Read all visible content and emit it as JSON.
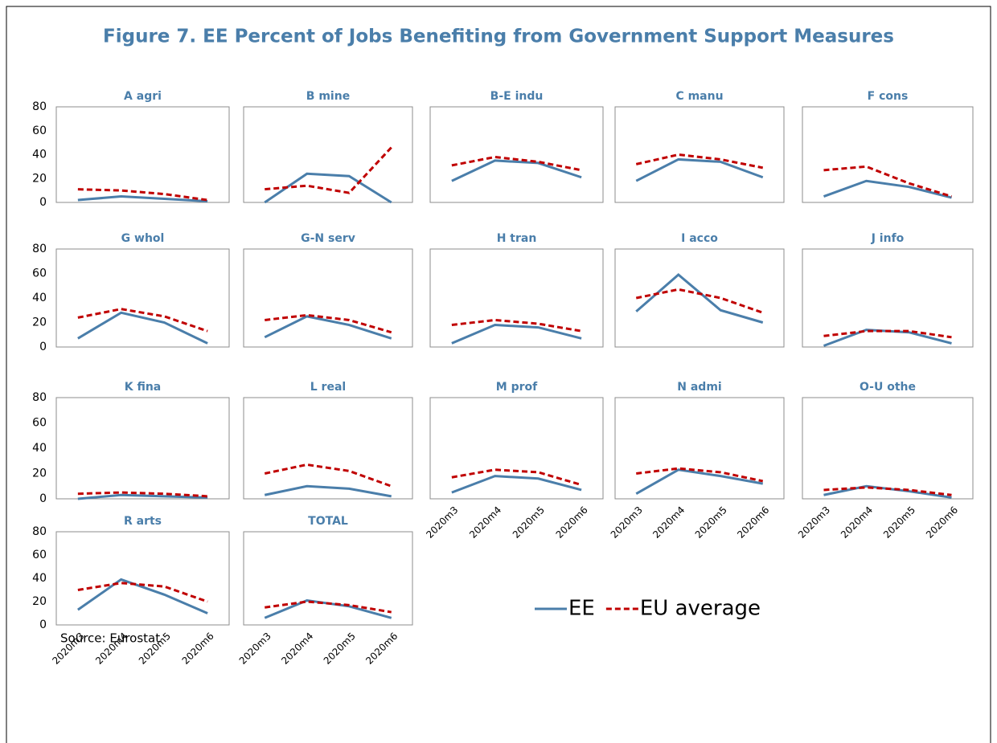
{
  "title": "Figure 7. EE Percent of Jobs Benefiting from Government Support Measures",
  "source": "Source: Eurostat",
  "chart_data": [
    {
      "type": "line",
      "title": "A agri",
      "categories": [
        "2020m3",
        "2020m4",
        "2020m5",
        "2020m6"
      ],
      "ylim": [
        0,
        80
      ],
      "yticks": [
        0,
        20,
        40,
        60,
        80
      ],
      "series": [
        {
          "name": "EE",
          "color": "#4a7eaa",
          "style": "solid",
          "values": [
            2,
            5,
            3,
            1
          ]
        },
        {
          "name": "EU average",
          "color": "#c00000",
          "style": "dashed",
          "values": [
            11,
            10,
            7,
            2
          ]
        }
      ]
    },
    {
      "type": "line",
      "title": "B mine",
      "categories": [
        "2020m3",
        "2020m4",
        "2020m5",
        "2020m6"
      ],
      "ylim": [
        0,
        80
      ],
      "yticks": [
        0,
        20,
        40,
        60,
        80
      ],
      "series": [
        {
          "name": "EE",
          "color": "#4a7eaa",
          "style": "solid",
          "values": [
            0,
            24,
            22,
            0
          ]
        },
        {
          "name": "EU average",
          "color": "#c00000",
          "style": "dashed",
          "values": [
            11,
            14,
            8,
            46
          ]
        }
      ]
    },
    {
      "type": "line",
      "title": "B-E indu",
      "categories": [
        "2020m3",
        "2020m4",
        "2020m5",
        "2020m6"
      ],
      "ylim": [
        0,
        80
      ],
      "yticks": [
        0,
        20,
        40,
        60,
        80
      ],
      "series": [
        {
          "name": "EE",
          "color": "#4a7eaa",
          "style": "solid",
          "values": [
            18,
            35,
            33,
            21
          ]
        },
        {
          "name": "EU average",
          "color": "#c00000",
          "style": "dashed",
          "values": [
            31,
            38,
            34,
            27
          ]
        }
      ]
    },
    {
      "type": "line",
      "title": "C manu",
      "categories": [
        "2020m3",
        "2020m4",
        "2020m5",
        "2020m6"
      ],
      "ylim": [
        0,
        80
      ],
      "yticks": [
        0,
        20,
        40,
        60,
        80
      ],
      "series": [
        {
          "name": "EE",
          "color": "#4a7eaa",
          "style": "solid",
          "values": [
            18,
            36,
            34,
            21
          ]
        },
        {
          "name": "EU average",
          "color": "#c00000",
          "style": "dashed",
          "values": [
            32,
            40,
            36,
            29
          ]
        }
      ]
    },
    {
      "type": "line",
      "title": "F cons",
      "categories": [
        "2020m3",
        "2020m4",
        "2020m5",
        "2020m6"
      ],
      "ylim": [
        0,
        80
      ],
      "yticks": [
        0,
        20,
        40,
        60,
        80
      ],
      "series": [
        {
          "name": "EE",
          "color": "#4a7eaa",
          "style": "solid",
          "values": [
            5,
            18,
            13,
            4
          ]
        },
        {
          "name": "EU average",
          "color": "#c00000",
          "style": "dashed",
          "values": [
            27,
            30,
            16,
            5
          ]
        }
      ]
    },
    {
      "type": "line",
      "title": "G whol",
      "categories": [
        "2020m3",
        "2020m4",
        "2020m5",
        "2020m6"
      ],
      "ylim": [
        0,
        80
      ],
      "yticks": [
        0,
        20,
        40,
        60,
        80
      ],
      "series": [
        {
          "name": "EE",
          "color": "#4a7eaa",
          "style": "solid",
          "values": [
            7,
            28,
            20,
            3
          ]
        },
        {
          "name": "EU average",
          "color": "#c00000",
          "style": "dashed",
          "values": [
            24,
            31,
            25,
            13
          ]
        }
      ]
    },
    {
      "type": "line",
      "title": "G-N serv",
      "categories": [
        "2020m3",
        "2020m4",
        "2020m5",
        "2020m6"
      ],
      "ylim": [
        0,
        80
      ],
      "yticks": [
        0,
        20,
        40,
        60,
        80
      ],
      "series": [
        {
          "name": "EE",
          "color": "#4a7eaa",
          "style": "solid",
          "values": [
            8,
            25,
            18,
            7
          ]
        },
        {
          "name": "EU average",
          "color": "#c00000",
          "style": "dashed",
          "values": [
            22,
            26,
            22,
            12
          ]
        }
      ]
    },
    {
      "type": "line",
      "title": "H tran",
      "categories": [
        "2020m3",
        "2020m4",
        "2020m5",
        "2020m6"
      ],
      "ylim": [
        0,
        80
      ],
      "yticks": [
        0,
        20,
        40,
        60,
        80
      ],
      "series": [
        {
          "name": "EE",
          "color": "#4a7eaa",
          "style": "solid",
          "values": [
            3,
            18,
            16,
            7
          ]
        },
        {
          "name": "EU average",
          "color": "#c00000",
          "style": "dashed",
          "values": [
            18,
            22,
            19,
            13
          ]
        }
      ]
    },
    {
      "type": "line",
      "title": "I acco",
      "categories": [
        "2020m3",
        "2020m4",
        "2020m5",
        "2020m6"
      ],
      "ylim": [
        0,
        80
      ],
      "yticks": [
        0,
        20,
        40,
        60,
        80
      ],
      "series": [
        {
          "name": "EE",
          "color": "#4a7eaa",
          "style": "solid",
          "values": [
            29,
            59,
            30,
            20
          ]
        },
        {
          "name": "EU average",
          "color": "#c00000",
          "style": "dashed",
          "values": [
            40,
            47,
            40,
            28
          ]
        }
      ]
    },
    {
      "type": "line",
      "title": "J info",
      "categories": [
        "2020m3",
        "2020m4",
        "2020m5",
        "2020m6"
      ],
      "ylim": [
        0,
        80
      ],
      "yticks": [
        0,
        20,
        40,
        60,
        80
      ],
      "series": [
        {
          "name": "EE",
          "color": "#4a7eaa",
          "style": "solid",
          "values": [
            1,
            14,
            12,
            3
          ]
        },
        {
          "name": "EU average",
          "color": "#c00000",
          "style": "dashed",
          "values": [
            9,
            13,
            13,
            8
          ]
        }
      ]
    },
    {
      "type": "line",
      "title": "K fina",
      "categories": [
        "2020m3",
        "2020m4",
        "2020m5",
        "2020m6"
      ],
      "ylim": [
        0,
        80
      ],
      "yticks": [
        0,
        20,
        40,
        60,
        80
      ],
      "series": [
        {
          "name": "EE",
          "color": "#4a7eaa",
          "style": "solid",
          "values": [
            0,
            3,
            2,
            1
          ]
        },
        {
          "name": "EU average",
          "color": "#c00000",
          "style": "dashed",
          "values": [
            4,
            5,
            4,
            2
          ]
        }
      ]
    },
    {
      "type": "line",
      "title": "L real",
      "categories": [
        "2020m3",
        "2020m4",
        "2020m5",
        "2020m6"
      ],
      "ylim": [
        0,
        80
      ],
      "yticks": [
        0,
        20,
        40,
        60,
        80
      ],
      "series": [
        {
          "name": "EE",
          "color": "#4a7eaa",
          "style": "solid",
          "values": [
            3,
            10,
            8,
            2
          ]
        },
        {
          "name": "EU average",
          "color": "#c00000",
          "style": "dashed",
          "values": [
            20,
            27,
            22,
            10
          ]
        }
      ]
    },
    {
      "type": "line",
      "title": "M prof",
      "categories": [
        "2020m3",
        "2020m4",
        "2020m5",
        "2020m6"
      ],
      "ylim": [
        0,
        80
      ],
      "yticks": [
        0,
        20,
        40,
        60,
        80
      ],
      "series": [
        {
          "name": "EE",
          "color": "#4a7eaa",
          "style": "solid",
          "values": [
            5,
            18,
            16,
            7
          ]
        },
        {
          "name": "EU average",
          "color": "#c00000",
          "style": "dashed",
          "values": [
            17,
            23,
            21,
            11
          ]
        }
      ]
    },
    {
      "type": "line",
      "title": "N admi",
      "categories": [
        "2020m3",
        "2020m4",
        "2020m5",
        "2020m6"
      ],
      "ylim": [
        0,
        80
      ],
      "yticks": [
        0,
        20,
        40,
        60,
        80
      ],
      "series": [
        {
          "name": "EE",
          "color": "#4a7eaa",
          "style": "solid",
          "values": [
            4,
            23,
            18,
            12
          ]
        },
        {
          "name": "EU average",
          "color": "#c00000",
          "style": "dashed",
          "values": [
            20,
            24,
            21,
            14
          ]
        }
      ]
    },
    {
      "type": "line",
      "title": "O-U othe",
      "categories": [
        "2020m3",
        "2020m4",
        "2020m5",
        "2020m6"
      ],
      "ylim": [
        0,
        80
      ],
      "yticks": [
        0,
        20,
        40,
        60,
        80
      ],
      "series": [
        {
          "name": "EE",
          "color": "#4a7eaa",
          "style": "solid",
          "values": [
            3,
            10,
            6,
            1
          ]
        },
        {
          "name": "EU average",
          "color": "#c00000",
          "style": "dashed",
          "values": [
            7,
            9,
            7,
            3
          ]
        }
      ]
    },
    {
      "type": "line",
      "title": "R arts",
      "categories": [
        "2020m3",
        "2020m4",
        "2020m5",
        "2020m6"
      ],
      "ylim": [
        0,
        80
      ],
      "yticks": [
        0,
        20,
        40,
        60,
        80
      ],
      "series": [
        {
          "name": "EE",
          "color": "#4a7eaa",
          "style": "solid",
          "values": [
            13,
            39,
            26,
            10
          ]
        },
        {
          "name": "EU average",
          "color": "#c00000",
          "style": "dashed",
          "values": [
            30,
            36,
            33,
            20
          ]
        }
      ]
    },
    {
      "type": "line",
      "title": "TOTAL",
      "categories": [
        "2020m3",
        "2020m4",
        "2020m5",
        "2020m6"
      ],
      "ylim": [
        0,
        80
      ],
      "yticks": [
        0,
        20,
        40,
        60,
        80
      ],
      "series": [
        {
          "name": "EE",
          "color": "#4a7eaa",
          "style": "solid",
          "values": [
            6,
            21,
            16,
            6
          ]
        },
        {
          "name": "EU average",
          "color": "#c00000",
          "style": "dashed",
          "values": [
            15,
            20,
            17,
            11
          ]
        }
      ]
    }
  ]
}
